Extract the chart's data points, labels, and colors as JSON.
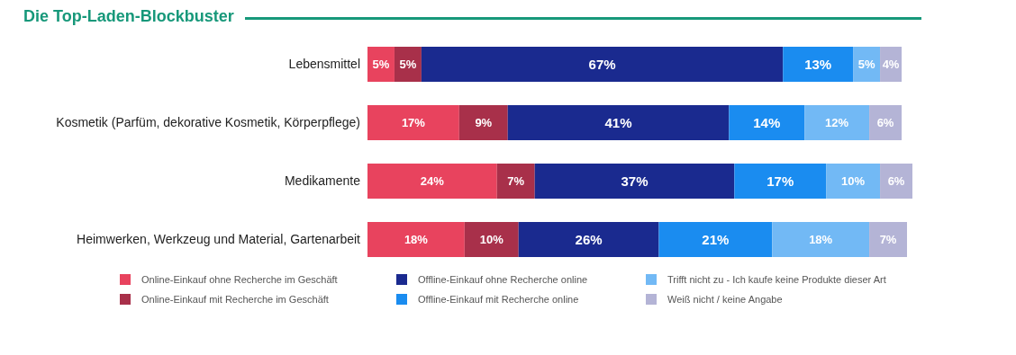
{
  "chart_data": {
    "type": "bar",
    "title": "Die Top-Laden-Blockbuster",
    "orientation": "horizontal",
    "stacked": true,
    "legend": "bottom",
    "categories": [
      "Lebensmittel",
      "Kosmetik (Parfüm, dekorative Kosmetik, Körperpflege)",
      "Medikamente",
      "Heimwerken, Werkzeug und Material, Gartenarbeit"
    ],
    "series": [
      {
        "name": "Online-Einkauf ohne Recherche im Geschäft",
        "color": "#e8435e",
        "values": [
          5,
          17,
          24,
          18
        ],
        "value_labels": [
          "5%",
          "17%",
          "24%",
          "18%"
        ]
      },
      {
        "name": "Online-Einkauf mit Recherche im Geschäft",
        "color": "#a8304a",
        "values": [
          5,
          9,
          7,
          10
        ],
        "value_labels": [
          "5%",
          "9%",
          "7%",
          "10%"
        ]
      },
      {
        "name": "Offline-Einkauf ohne Recherche online",
        "color": "#1a2a8f",
        "values": [
          67,
          41,
          37,
          26
        ],
        "value_labels": [
          "67%",
          "41%",
          "37%",
          "26%"
        ]
      },
      {
        "name": "Offline-Einkauf mit Recherche online",
        "color": "#1a8cf0",
        "values": [
          13,
          14,
          17,
          21
        ],
        "value_labels": [
          "13%",
          "14%",
          "17%",
          "21%"
        ]
      },
      {
        "name": "Trifft nicht zu - Ich kaufe keine Produkte dieser Art",
        "color": "#72b9f5",
        "values": [
          5,
          12,
          10,
          18
        ],
        "value_labels": [
          "5%",
          "12%",
          "10%",
          "18%"
        ]
      },
      {
        "name": "Weiß nicht / keine Angabe",
        "color": "#b4b4d6",
        "values": [
          4,
          6,
          6,
          7
        ],
        "value_labels": [
          "4%",
          "6%",
          "6%",
          "7%"
        ]
      }
    ]
  }
}
